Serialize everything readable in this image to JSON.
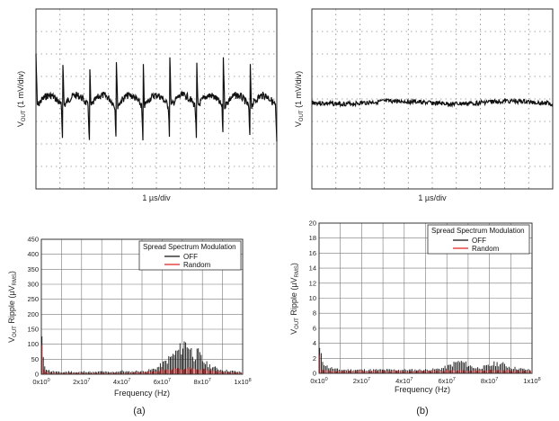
{
  "chart_data": [
    {
      "type": "line",
      "ylabel_main": "V",
      "ylabel_sub": "OUT",
      "ylabel_rest": " (1 mV/div)",
      "xlabel": "1 µs/div",
      "waveform": "spiky",
      "cycles": 9
    },
    {
      "type": "line",
      "ylabel_main": "V",
      "ylabel_sub": "OUT",
      "ylabel_rest": " (1 mV/div)",
      "xlabel": "1 µs/div",
      "waveform": "flat"
    },
    {
      "type": "bar",
      "ylabel_main": "V",
      "ylabel_sub": "OUT",
      "ylabel_rest": " Ripple (µV",
      "ylabel_sub2": "RMS",
      "ylabel_end": ")",
      "xlabel": "Frequency (Hz)",
      "ylim": [
        0,
        450
      ],
      "yticks": [
        "0",
        "50",
        "100",
        "150",
        "200",
        "250",
        "300",
        "350",
        "400",
        "450"
      ],
      "xticks": [
        "0x10",
        "2x10",
        "4x10",
        "6x10",
        "8x10",
        "1x10"
      ],
      "xtick_exp": [
        "0",
        "7",
        "7",
        "7",
        "7",
        "8"
      ],
      "legend_title": "Spread Spectrum Modulation",
      "series": [
        {
          "name": "OFF",
          "color": "#111111",
          "points": [
            [
              0.3,
              150
            ],
            [
              1.0,
              60
            ],
            [
              1.6,
              40
            ],
            [
              2.4,
              25
            ],
            [
              3.3,
              18
            ],
            [
              4.2,
              14
            ],
            [
              6,
              12
            ],
            [
              8,
              10
            ],
            [
              10,
              8
            ],
            [
              12,
              10
            ],
            [
              14,
              12
            ],
            [
              16,
              10
            ],
            [
              18,
              8
            ],
            [
              20,
              10
            ],
            [
              22,
              12
            ],
            [
              24,
              10
            ],
            [
              26,
              8
            ],
            [
              28,
              10
            ],
            [
              30,
              12
            ],
            [
              32,
              10
            ],
            [
              34,
              8
            ],
            [
              36,
              10
            ],
            [
              38,
              12
            ],
            [
              40,
              14
            ],
            [
              42,
              12
            ],
            [
              44,
              10
            ],
            [
              46,
              12
            ],
            [
              48,
              14
            ],
            [
              50,
              12
            ],
            [
              52,
              14
            ],
            [
              54,
              18
            ],
            [
              56,
              22
            ],
            [
              58,
              30
            ],
            [
              60,
              42
            ],
            [
              62,
              55
            ],
            [
              64,
              70
            ],
            [
              66,
              85
            ],
            [
              68,
              100
            ],
            [
              70,
              115
            ],
            [
              71,
              130
            ],
            [
              72,
              135
            ],
            [
              73,
              128
            ],
            [
              74,
              110
            ],
            [
              75,
              90
            ],
            [
              76,
              75
            ],
            [
              77,
              85
            ],
            [
              78,
              90
            ],
            [
              79,
              75
            ],
            [
              80,
              60
            ],
            [
              82,
              45
            ],
            [
              84,
              35
            ],
            [
              86,
              28
            ],
            [
              88,
              22
            ],
            [
              90,
              18
            ],
            [
              92,
              16
            ],
            [
              94,
              14
            ],
            [
              96,
              12
            ],
            [
              98,
              10
            ]
          ]
        },
        {
          "name": "Random",
          "color": "#e02020",
          "points": [
            [
              0.3,
              140
            ],
            [
              1.0,
              30
            ],
            [
              2,
              10
            ],
            [
              4,
              6
            ],
            [
              6,
              5
            ],
            [
              10,
              5
            ],
            [
              20,
              5
            ],
            [
              30,
              5
            ],
            [
              40,
              5
            ],
            [
              50,
              8
            ],
            [
              55,
              12
            ],
            [
              60,
              18
            ],
            [
              65,
              22
            ],
            [
              70,
              25
            ],
            [
              75,
              25
            ],
            [
              80,
              20
            ],
            [
              85,
              15
            ],
            [
              90,
              10
            ],
            [
              95,
              8
            ],
            [
              98,
              6
            ]
          ]
        }
      ],
      "caption": "(a)"
    },
    {
      "type": "bar",
      "ylabel_main": "V",
      "ylabel_sub": "OUT",
      "ylabel_rest": " Ripple (µV",
      "ylabel_sub2": "RMS",
      "ylabel_end": ")",
      "xlabel": "Frequency (Hz)",
      "ylim": [
        0,
        20
      ],
      "yticks": [
        "0",
        "2",
        "4",
        "6",
        "8",
        "10",
        "12",
        "14",
        "16",
        "18",
        "20"
      ],
      "xticks": [
        "0x10",
        "2x10",
        "4x10",
        "6x10",
        "8x10",
        "1x10"
      ],
      "xtick_exp": [
        "0",
        "7",
        "7",
        "7",
        "7",
        "8"
      ],
      "legend_title": "Spread Spectrum Modulation",
      "series": [
        {
          "name": "OFF",
          "color": "#111111",
          "points": [
            [
              0.3,
              4
            ],
            [
              1,
              2.8
            ],
            [
              2,
              2
            ],
            [
              3,
              1.5
            ],
            [
              4,
              1.1
            ],
            [
              6,
              0.9
            ],
            [
              8,
              0.7
            ],
            [
              10,
              0.6
            ],
            [
              15,
              0.6
            ],
            [
              20,
              0.6
            ],
            [
              25,
              0.6
            ],
            [
              30,
              0.6
            ],
            [
              35,
              0.6
            ],
            [
              40,
              0.6
            ],
            [
              45,
              0.6
            ],
            [
              50,
              0.6
            ],
            [
              55,
              0.7
            ],
            [
              58,
              0.9
            ],
            [
              60,
              1.1
            ],
            [
              62,
              1.4
            ],
            [
              64,
              1.8
            ],
            [
              66,
              2.0
            ],
            [
              68,
              1.8
            ],
            [
              70,
              1.4
            ],
            [
              72,
              1.1
            ],
            [
              74,
              0.9
            ],
            [
              76,
              1.0
            ],
            [
              78,
              1.1
            ],
            [
              80,
              1.3
            ],
            [
              82,
              1.6
            ],
            [
              84,
              1.7
            ],
            [
              86,
              1.6
            ],
            [
              88,
              1.3
            ],
            [
              90,
              1.0
            ],
            [
              92,
              0.9
            ],
            [
              94,
              0.8
            ],
            [
              96,
              0.7
            ],
            [
              98,
              0.6
            ]
          ]
        },
        {
          "name": "Random",
          "color": "#e02020",
          "points": [
            [
              0.3,
              3.5
            ],
            [
              1,
              0.8
            ],
            [
              2,
              0.5
            ],
            [
              5,
              0.4
            ],
            [
              10,
              0.4
            ],
            [
              20,
              0.4
            ],
            [
              30,
              0.4
            ],
            [
              40,
              0.4
            ],
            [
              50,
              0.4
            ],
            [
              60,
              0.5
            ],
            [
              70,
              0.5
            ],
            [
              80,
              0.5
            ],
            [
              90,
              0.5
            ],
            [
              98,
              0.4
            ]
          ]
        }
      ],
      "caption": "(b)"
    }
  ]
}
